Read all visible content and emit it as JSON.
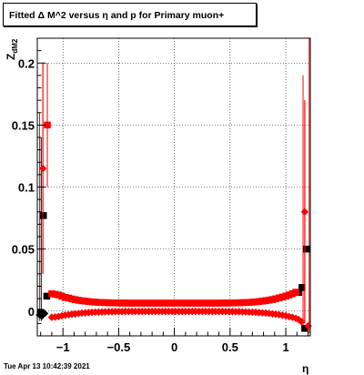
{
  "title": "Fitted Δ M^2 versus η and p for Primary muon+",
  "timestamp": "Tue Apr 13 10:42:39 2021",
  "chart_data": {
    "type": "scatter",
    "title": "Fitted Δ M^2 versus η and p for Primary muon+",
    "xlabel": "η",
    "ylabel": "Z_dM2",
    "xlim": [
      -1.23,
      1.22
    ],
    "ylim": [
      -0.02,
      0.22
    ],
    "xticks": [
      -1,
      -0.5,
      0,
      0.5,
      1
    ],
    "xtick_labels": [
      "−1",
      "−0.5",
      "0",
      "0.5",
      "1"
    ],
    "yticks": [
      0,
      0.05,
      0.1,
      0.15,
      0.2
    ],
    "ytick_labels": [
      "0",
      "0.05",
      "0.1",
      "0.15",
      "0.2"
    ],
    "grid": true,
    "series": [
      {
        "color": "#000000",
        "marker": "square",
        "points": [
          {
            "x": -1.2,
            "y": -0.001,
            "err": 0.0
          },
          {
            "x": -1.175,
            "y": 0.077,
            "err": 0.0
          },
          {
            "x": -1.145,
            "y": 0.012,
            "err": 0.0
          },
          {
            "x": 1.115,
            "y": 0.015,
            "err": 0.0
          },
          {
            "x": 1.145,
            "y": 0.019,
            "err": 0.0
          },
          {
            "x": 1.17,
            "y": -0.014,
            "err": 0.0
          },
          {
            "x": 1.185,
            "y": 0.05,
            "err": 0.0
          }
        ]
      },
      {
        "color": "#000000",
        "marker": "diamond",
        "points": [
          {
            "x": -1.21,
            "y": -0.003,
            "err": 0.0
          },
          {
            "x": -1.19,
            "y": -0.004,
            "err": 0.0
          },
          {
            "x": -1.165,
            "y": -0.002,
            "err": 0.0
          }
        ]
      },
      {
        "color": "#ff0000",
        "marker": "square",
        "points": [
          {
            "x": -1.14,
            "y": 0.15,
            "err": 0.05
          },
          {
            "x": -1.1,
            "y": 0.014,
            "err": 0.0
          },
          {
            "x": -1.07,
            "y": 0.0135,
            "err": 0.0
          },
          {
            "x": -1.04,
            "y": 0.013,
            "err": 0.0
          },
          {
            "x": -1.01,
            "y": 0.012,
            "err": 0.0
          },
          {
            "x": -0.98,
            "y": 0.011,
            "err": 0.0
          },
          {
            "x": -0.95,
            "y": 0.0105,
            "err": 0.0
          },
          {
            "x": -0.92,
            "y": 0.0098,
            "err": 0.0
          },
          {
            "x": -0.89,
            "y": 0.0092,
            "err": 0.0
          },
          {
            "x": -0.86,
            "y": 0.0087,
            "err": 0.0
          },
          {
            "x": -0.83,
            "y": 0.0083,
            "err": 0.0
          },
          {
            "x": -0.8,
            "y": 0.008,
            "err": 0.0
          },
          {
            "x": -0.77,
            "y": 0.0077,
            "err": 0.0
          },
          {
            "x": -0.74,
            "y": 0.0074,
            "err": 0.0
          },
          {
            "x": -0.71,
            "y": 0.0072,
            "err": 0.0
          },
          {
            "x": -0.68,
            "y": 0.007,
            "err": 0.0
          },
          {
            "x": -0.65,
            "y": 0.0069,
            "err": 0.0
          },
          {
            "x": -0.62,
            "y": 0.0068,
            "err": 0.0
          },
          {
            "x": -0.59,
            "y": 0.0067,
            "err": 0.0
          },
          {
            "x": -0.56,
            "y": 0.0066,
            "err": 0.0
          },
          {
            "x": -0.53,
            "y": 0.0066,
            "err": 0.0
          },
          {
            "x": -0.5,
            "y": 0.0065,
            "err": 0.0
          },
          {
            "x": -0.47,
            "y": 0.0065,
            "err": 0.0
          },
          {
            "x": -0.44,
            "y": 0.0065,
            "err": 0.0
          },
          {
            "x": -0.41,
            "y": 0.0064,
            "err": 0.0
          },
          {
            "x": -0.38,
            "y": 0.0064,
            "err": 0.0
          },
          {
            "x": -0.35,
            "y": 0.0064,
            "err": 0.0
          },
          {
            "x": -0.32,
            "y": 0.0064,
            "err": 0.0
          },
          {
            "x": -0.29,
            "y": 0.0064,
            "err": 0.0
          },
          {
            "x": -0.26,
            "y": 0.0064,
            "err": 0.0
          },
          {
            "x": -0.23,
            "y": 0.0064,
            "err": 0.0
          },
          {
            "x": -0.2,
            "y": 0.0064,
            "err": 0.0
          },
          {
            "x": -0.17,
            "y": 0.0064,
            "err": 0.0
          },
          {
            "x": -0.14,
            "y": 0.0064,
            "err": 0.0
          },
          {
            "x": -0.11,
            "y": 0.0064,
            "err": 0.0
          },
          {
            "x": -0.08,
            "y": 0.0064,
            "err": 0.0
          },
          {
            "x": -0.05,
            "y": 0.0064,
            "err": 0.0
          },
          {
            "x": -0.02,
            "y": 0.0064,
            "err": 0.0
          },
          {
            "x": 0.01,
            "y": 0.0064,
            "err": 0.0
          },
          {
            "x": 0.04,
            "y": 0.0064,
            "err": 0.0
          },
          {
            "x": 0.07,
            "y": 0.0064,
            "err": 0.0
          },
          {
            "x": 0.1,
            "y": 0.0064,
            "err": 0.0
          },
          {
            "x": 0.13,
            "y": 0.0064,
            "err": 0.0
          },
          {
            "x": 0.16,
            "y": 0.0064,
            "err": 0.0
          },
          {
            "x": 0.19,
            "y": 0.0064,
            "err": 0.0
          },
          {
            "x": 0.22,
            "y": 0.0064,
            "err": 0.0
          },
          {
            "x": 0.25,
            "y": 0.0064,
            "err": 0.0
          },
          {
            "x": 0.28,
            "y": 0.0064,
            "err": 0.0
          },
          {
            "x": 0.31,
            "y": 0.0064,
            "err": 0.0
          },
          {
            "x": 0.34,
            "y": 0.0064,
            "err": 0.0
          },
          {
            "x": 0.37,
            "y": 0.0064,
            "err": 0.0
          },
          {
            "x": 0.4,
            "y": 0.0064,
            "err": 0.0
          },
          {
            "x": 0.43,
            "y": 0.0065,
            "err": 0.0
          },
          {
            "x": 0.46,
            "y": 0.0065,
            "err": 0.0
          },
          {
            "x": 0.49,
            "y": 0.0065,
            "err": 0.0
          },
          {
            "x": 0.52,
            "y": 0.0066,
            "err": 0.0
          },
          {
            "x": 0.55,
            "y": 0.0066,
            "err": 0.0
          },
          {
            "x": 0.58,
            "y": 0.0067,
            "err": 0.0
          },
          {
            "x": 0.61,
            "y": 0.0068,
            "err": 0.0
          },
          {
            "x": 0.64,
            "y": 0.0069,
            "err": 0.0
          },
          {
            "x": 0.67,
            "y": 0.007,
            "err": 0.0
          },
          {
            "x": 0.7,
            "y": 0.0072,
            "err": 0.0
          },
          {
            "x": 0.73,
            "y": 0.0074,
            "err": 0.0
          },
          {
            "x": 0.76,
            "y": 0.0077,
            "err": 0.0
          },
          {
            "x": 0.79,
            "y": 0.008,
            "err": 0.0
          },
          {
            "x": 0.82,
            "y": 0.0084,
            "err": 0.0
          },
          {
            "x": 0.85,
            "y": 0.0088,
            "err": 0.0
          },
          {
            "x": 0.88,
            "y": 0.0093,
            "err": 0.0
          },
          {
            "x": 0.91,
            "y": 0.0099,
            "err": 0.0
          },
          {
            "x": 0.94,
            "y": 0.0106,
            "err": 0.0
          },
          {
            "x": 0.97,
            "y": 0.0113,
            "err": 0.0
          },
          {
            "x": 1.0,
            "y": 0.0121,
            "err": 0.0
          },
          {
            "x": 1.03,
            "y": 0.013,
            "err": 0.0
          },
          {
            "x": 1.06,
            "y": 0.014,
            "err": 0.0
          },
          {
            "x": 1.09,
            "y": 0.0152,
            "err": 0.0
          }
        ]
      },
      {
        "color": "#ff0000",
        "marker": "diamond",
        "points": [
          {
            "x": -1.18,
            "y": 0.115,
            "err": 0.085
          },
          {
            "x": -1.1,
            "y": -0.005,
            "err": 0.0
          },
          {
            "x": -1.07,
            "y": -0.0048,
            "err": 0.0
          },
          {
            "x": -1.04,
            "y": -0.0044,
            "err": 0.0
          },
          {
            "x": -1.01,
            "y": -0.0038,
            "err": 0.0
          },
          {
            "x": -0.98,
            "y": -0.0033,
            "err": 0.0
          },
          {
            "x": -0.95,
            "y": -0.0029,
            "err": 0.0
          },
          {
            "x": -0.92,
            "y": -0.0025,
            "err": 0.0
          },
          {
            "x": -0.89,
            "y": -0.0022,
            "err": 0.0
          },
          {
            "x": -0.86,
            "y": -0.0019,
            "err": 0.0
          },
          {
            "x": -0.83,
            "y": -0.0016,
            "err": 0.0
          },
          {
            "x": -0.8,
            "y": -0.0014,
            "err": 0.0
          },
          {
            "x": -0.77,
            "y": -0.0012,
            "err": 0.0
          },
          {
            "x": -0.74,
            "y": -0.001,
            "err": 0.0
          },
          {
            "x": -0.71,
            "y": -0.0009,
            "err": 0.0
          },
          {
            "x": -0.68,
            "y": -0.0008,
            "err": 0.0
          },
          {
            "x": -0.65,
            "y": -0.0007,
            "err": 0.0
          },
          {
            "x": -0.62,
            "y": -0.0006,
            "err": 0.0
          },
          {
            "x": -0.59,
            "y": -0.0005,
            "err": 0.0
          },
          {
            "x": -0.56,
            "y": -0.0005,
            "err": 0.0
          },
          {
            "x": -0.53,
            "y": -0.0004,
            "err": 0.0
          },
          {
            "x": -0.5,
            "y": -0.0004,
            "err": 0.0
          },
          {
            "x": -0.47,
            "y": -0.0004,
            "err": 0.0
          },
          {
            "x": -0.44,
            "y": -0.0003,
            "err": 0.0
          },
          {
            "x": -0.41,
            "y": -0.0003,
            "err": 0.0
          },
          {
            "x": -0.38,
            "y": -0.0003,
            "err": 0.0
          },
          {
            "x": -0.35,
            "y": -0.0003,
            "err": 0.0
          },
          {
            "x": -0.32,
            "y": -0.0003,
            "err": 0.0
          },
          {
            "x": -0.29,
            "y": -0.0003,
            "err": 0.0
          },
          {
            "x": -0.26,
            "y": -0.0003,
            "err": 0.0
          },
          {
            "x": -0.23,
            "y": -0.0003,
            "err": 0.0
          },
          {
            "x": -0.2,
            "y": -0.0003,
            "err": 0.0
          },
          {
            "x": -0.17,
            "y": -0.0003,
            "err": 0.0
          },
          {
            "x": -0.14,
            "y": -0.0003,
            "err": 0.0
          },
          {
            "x": -0.11,
            "y": -0.0003,
            "err": 0.0
          },
          {
            "x": -0.08,
            "y": -0.0003,
            "err": 0.0
          },
          {
            "x": -0.05,
            "y": -0.0003,
            "err": 0.0
          },
          {
            "x": -0.02,
            "y": -0.0003,
            "err": 0.0
          },
          {
            "x": 0.01,
            "y": -0.0003,
            "err": 0.0
          },
          {
            "x": 0.04,
            "y": -0.0003,
            "err": 0.0
          },
          {
            "x": 0.07,
            "y": -0.0003,
            "err": 0.0
          },
          {
            "x": 0.1,
            "y": -0.0003,
            "err": 0.0
          },
          {
            "x": 0.13,
            "y": -0.0003,
            "err": 0.0
          },
          {
            "x": 0.16,
            "y": -0.0003,
            "err": 0.0
          },
          {
            "x": 0.19,
            "y": -0.0003,
            "err": 0.0
          },
          {
            "x": 0.22,
            "y": -0.0003,
            "err": 0.0
          },
          {
            "x": 0.25,
            "y": -0.0003,
            "err": 0.0
          },
          {
            "x": 0.28,
            "y": -0.0003,
            "err": 0.0
          },
          {
            "x": 0.31,
            "y": -0.0003,
            "err": 0.0
          },
          {
            "x": 0.34,
            "y": -0.0003,
            "err": 0.0
          },
          {
            "x": 0.37,
            "y": -0.0003,
            "err": 0.0
          },
          {
            "x": 0.4,
            "y": -0.0003,
            "err": 0.0
          },
          {
            "x": 0.43,
            "y": -0.0003,
            "err": 0.0
          },
          {
            "x": 0.46,
            "y": -0.0004,
            "err": 0.0
          },
          {
            "x": 0.49,
            "y": -0.0004,
            "err": 0.0
          },
          {
            "x": 0.52,
            "y": -0.0004,
            "err": 0.0
          },
          {
            "x": 0.55,
            "y": -0.0005,
            "err": 0.0
          },
          {
            "x": 0.58,
            "y": -0.0005,
            "err": 0.0
          },
          {
            "x": 0.61,
            "y": -0.0006,
            "err": 0.0
          },
          {
            "x": 0.64,
            "y": -0.0007,
            "err": 0.0
          },
          {
            "x": 0.67,
            "y": -0.0008,
            "err": 0.0
          },
          {
            "x": 0.7,
            "y": -0.0009,
            "err": 0.0
          },
          {
            "x": 0.73,
            "y": -0.001,
            "err": 0.0
          },
          {
            "x": 0.76,
            "y": -0.0012,
            "err": 0.0
          },
          {
            "x": 0.79,
            "y": -0.0014,
            "err": 0.0
          },
          {
            "x": 0.82,
            "y": -0.0016,
            "err": 0.0
          },
          {
            "x": 0.85,
            "y": -0.0019,
            "err": 0.0
          },
          {
            "x": 0.88,
            "y": -0.0022,
            "err": 0.0
          },
          {
            "x": 0.91,
            "y": -0.0025,
            "err": 0.0
          },
          {
            "x": 0.94,
            "y": -0.0029,
            "err": 0.0
          },
          {
            "x": 0.97,
            "y": -0.0033,
            "err": 0.0
          },
          {
            "x": 1.0,
            "y": -0.0038,
            "err": 0.0
          },
          {
            "x": 1.03,
            "y": -0.0044,
            "err": 0.0
          },
          {
            "x": 1.06,
            "y": -0.005,
            "err": 0.0
          },
          {
            "x": 1.09,
            "y": -0.0058,
            "err": 0.0
          },
          {
            "x": 1.115,
            "y": -0.0068,
            "err": 0.0
          },
          {
            "x": 1.14,
            "y": -0.0085,
            "err": 0.0
          },
          {
            "x": 1.17,
            "y": 0.08,
            "err": 0.09
          },
          {
            "x": 1.2,
            "y": -0.012,
            "err": 0.0
          }
        ]
      }
    ],
    "error_bars": [
      {
        "x": -1.21,
        "y_low": -0.008,
        "y_high": 0.16,
        "color": "#ff0000"
      },
      {
        "x": -1.195,
        "y_low": -0.008,
        "y_high": 0.14,
        "color": "#000000"
      },
      {
        "x": -1.14,
        "y_low": 0.1,
        "y_high": 0.2,
        "color": "#ff0000"
      },
      {
        "x": -1.18,
        "y_low": 0.03,
        "y_high": 0.2,
        "color": "#ff0000"
      },
      {
        "x": 1.155,
        "y_low": -0.015,
        "y_high": 0.19,
        "color": "#ff0000"
      },
      {
        "x": 1.17,
        "y_low": -0.01,
        "y_high": 0.17,
        "color": "#ff0000"
      },
      {
        "x": 1.21,
        "y_low": -0.018,
        "y_high": 0.22,
        "color": "#ff0000"
      }
    ]
  }
}
